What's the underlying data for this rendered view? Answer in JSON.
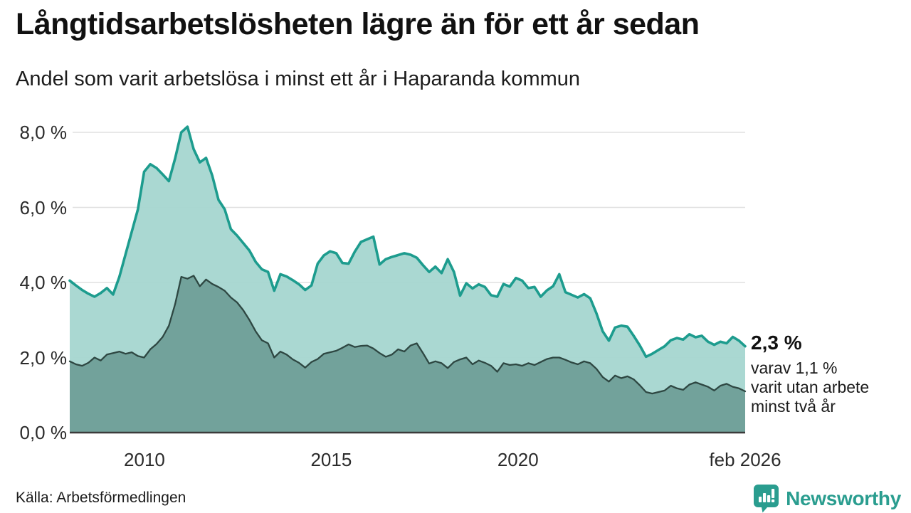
{
  "header": {
    "title": "Långtidsarbetslösheten lägre än för ett år sedan",
    "subtitle": "Andel som varit arbetslösa i minst ett år i Haparanda kommun"
  },
  "annotation": {
    "value": "2,3 %",
    "line1": "varav 1,1 %",
    "line2": "varit utan arbete",
    "line3": "minst två år"
  },
  "footer": {
    "source": "Källa: Arbetsförmedlingen",
    "brand": "Newsworthy"
  },
  "colors": {
    "line_teal": "#1d9c8e",
    "fill_light": "#a5d6cf",
    "fill_dark": "#6f9e97",
    "line_dark": "#2e4742",
    "grid": "#e0e0e0",
    "baseline": "#3b3b3b",
    "logo_teal": "#2a9d8f",
    "text": "#1a1a1a"
  },
  "chart_data": {
    "type": "area",
    "title": "Långtidsarbetslösheten lägre än för ett år sedan",
    "subtitle": "Andel som varit arbetslösa i minst ett år i Haparanda kommun",
    "unit": "%",
    "x_start": 2008.0,
    "x_end": 2026.083,
    "n_points": 110,
    "ylim": [
      0,
      8.5
    ],
    "grid": true,
    "legend_position": "annotation-at-line-end",
    "yticks": [
      {
        "value": 0,
        "label": "0,0 %"
      },
      {
        "value": 2,
        "label": "2,0 %"
      },
      {
        "value": 4,
        "label": "4,0 %"
      },
      {
        "value": 6,
        "label": "6,0 %"
      },
      {
        "value": 8,
        "label": "8,0 %"
      }
    ],
    "xticks": [
      {
        "t": 2010,
        "label": "2010"
      },
      {
        "t": 2015,
        "label": "2015"
      },
      {
        "t": 2020,
        "label": "2020"
      },
      {
        "t": 2026.083,
        "label": "feb 2026"
      }
    ],
    "series": [
      {
        "name": "Arbetslösa minst ett år",
        "color_key": "line_teal",
        "fill_key": "fill_light",
        "final_value": 2.3,
        "final_label": "2,3 %",
        "values": [
          4.05,
          3.92,
          3.8,
          3.7,
          3.62,
          3.72,
          3.85,
          3.68,
          4.15,
          4.75,
          5.35,
          5.95,
          6.95,
          7.15,
          7.05,
          6.88,
          6.7,
          7.3,
          8.0,
          8.15,
          7.55,
          7.2,
          7.32,
          6.85,
          6.2,
          5.95,
          5.42,
          5.25,
          5.05,
          4.85,
          4.55,
          4.35,
          4.28,
          3.78,
          4.22,
          4.16,
          4.06,
          3.95,
          3.8,
          3.92,
          4.5,
          4.72,
          4.83,
          4.78,
          4.52,
          4.5,
          4.82,
          5.08,
          5.15,
          5.22,
          4.48,
          4.62,
          4.68,
          4.73,
          4.78,
          4.74,
          4.66,
          4.46,
          4.28,
          4.42,
          4.25,
          4.62,
          4.28,
          3.65,
          3.98,
          3.84,
          3.95,
          3.88,
          3.66,
          3.62,
          3.96,
          3.89,
          4.12,
          4.05,
          3.85,
          3.88,
          3.62,
          3.79,
          3.9,
          4.22,
          3.74,
          3.67,
          3.6,
          3.69,
          3.58,
          3.18,
          2.7,
          2.45,
          2.8,
          2.85,
          2.82,
          2.58,
          2.32,
          2.02,
          2.1,
          2.2,
          2.3,
          2.46,
          2.52,
          2.48,
          2.62,
          2.54,
          2.58,
          2.42,
          2.34,
          2.42,
          2.38,
          2.55,
          2.45,
          2.3
        ]
      },
      {
        "name": "varav utan arbete minst två år",
        "color_key": "line_dark",
        "fill_key": "fill_dark",
        "final_value": 1.1,
        "final_label": "1,1 %",
        "values": [
          1.9,
          1.82,
          1.78,
          1.86,
          2.0,
          1.92,
          2.08,
          2.12,
          2.16,
          2.1,
          2.14,
          2.04,
          2.0,
          2.22,
          2.36,
          2.55,
          2.85,
          3.42,
          4.15,
          4.1,
          4.18,
          3.9,
          4.08,
          3.96,
          3.88,
          3.78,
          3.6,
          3.47,
          3.26,
          3.0,
          2.7,
          2.46,
          2.38,
          2.0,
          2.16,
          2.08,
          1.95,
          1.86,
          1.73,
          1.88,
          1.96,
          2.1,
          2.14,
          2.18,
          2.26,
          2.35,
          2.28,
          2.31,
          2.32,
          2.24,
          2.12,
          2.02,
          2.08,
          2.22,
          2.16,
          2.32,
          2.38,
          2.12,
          1.84,
          1.9,
          1.85,
          1.72,
          1.88,
          1.95,
          2.0,
          1.82,
          1.92,
          1.86,
          1.78,
          1.62,
          1.85,
          1.8,
          1.82,
          1.78,
          1.85,
          1.8,
          1.88,
          1.96,
          2.0,
          2.0,
          1.94,
          1.87,
          1.82,
          1.9,
          1.85,
          1.7,
          1.48,
          1.36,
          1.52,
          1.45,
          1.5,
          1.42,
          1.26,
          1.08,
          1.04,
          1.08,
          1.12,
          1.25,
          1.18,
          1.14,
          1.28,
          1.34,
          1.28,
          1.22,
          1.12,
          1.25,
          1.3,
          1.22,
          1.18,
          1.1
        ]
      }
    ]
  }
}
